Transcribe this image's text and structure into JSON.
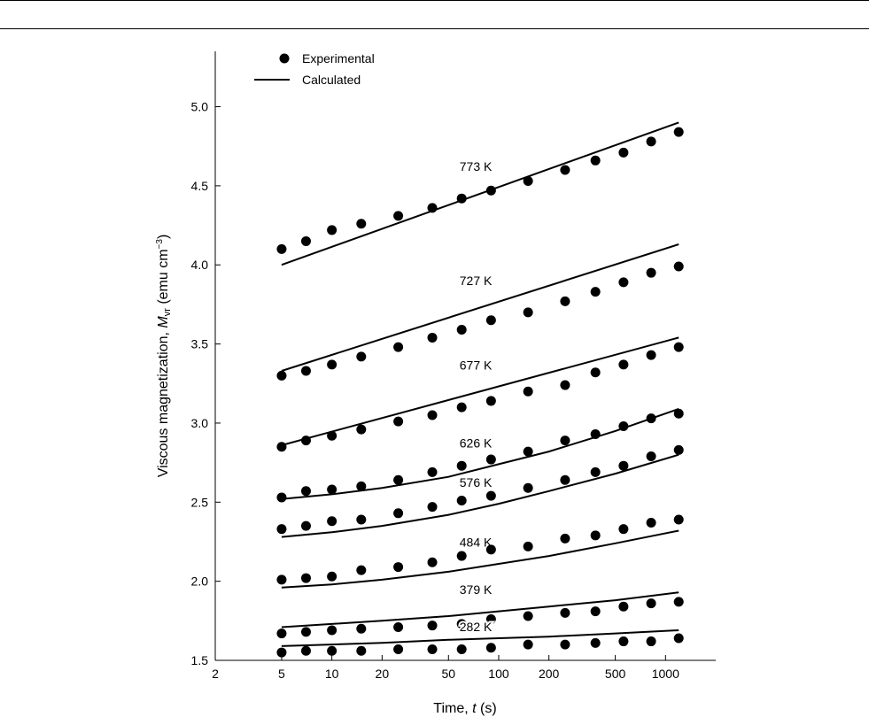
{
  "chart_data": {
    "type": "scatter",
    "xlabel": {
      "main": "Time, ",
      "var": "t",
      "unit": " (s)"
    },
    "ylabel": {
      "main": "Viscous magnetization, ",
      "var": "M",
      "sub": "vr",
      "unit": " (emu cm",
      "sup": "−3",
      "close": ")"
    },
    "xscale": "log",
    "xlim": [
      2,
      2000
    ],
    "ylim": [
      1.5,
      5.35
    ],
    "xticks": [
      2,
      5,
      10,
      20,
      50,
      100,
      200,
      500,
      1000
    ],
    "xtick_labels": [
      "2",
      "5",
      "10",
      "20",
      "50",
      "100",
      "200",
      "500",
      "1000"
    ],
    "yticks": [
      1.5,
      2.0,
      2.5,
      3.0,
      3.5,
      4.0,
      4.5,
      5.0
    ],
    "ytick_labels": [
      "1.5",
      "2.0",
      "2.5",
      "3.0",
      "3.5",
      "4.0",
      "4.5",
      "5.0"
    ],
    "legend": {
      "position": "top-left",
      "entries": [
        "Experimental",
        "Calculated"
      ]
    },
    "x": [
      5,
      7,
      10,
      15,
      25,
      40,
      60,
      90,
      150,
      250,
      380,
      560,
      820,
      1200
    ],
    "series": [
      {
        "name": "773 K",
        "experimental": [
          4.1,
          4.15,
          4.22,
          4.26,
          4.31,
          4.36,
          4.42,
          4.47,
          4.53,
          4.6,
          4.66,
          4.71,
          4.78,
          4.84
        ],
        "calculated_x": [
          5,
          1200
        ],
        "calculated": [
          4.0,
          4.9
        ]
      },
      {
        "name": "727 K",
        "experimental": [
          3.3,
          3.33,
          3.37,
          3.42,
          3.48,
          3.54,
          3.59,
          3.65,
          3.7,
          3.77,
          3.83,
          3.89,
          3.95,
          3.99
        ],
        "calculated_x": [
          5,
          1200
        ],
        "calculated": [
          3.33,
          4.13
        ]
      },
      {
        "name": "677 K",
        "experimental": [
          2.85,
          2.89,
          2.92,
          2.96,
          3.01,
          3.05,
          3.1,
          3.14,
          3.2,
          3.24,
          3.32,
          3.37,
          3.43,
          3.48
        ],
        "calculated_x": [
          5,
          1200
        ],
        "calculated": [
          2.86,
          3.54
        ]
      },
      {
        "name": "626 K",
        "experimental": [
          2.53,
          2.57,
          2.58,
          2.6,
          2.64,
          2.69,
          2.73,
          2.77,
          2.82,
          2.89,
          2.93,
          2.98,
          3.03,
          3.06
        ],
        "calculated_x": [
          5,
          10,
          20,
          50,
          100,
          200,
          500,
          1200
        ],
        "calculated": [
          2.52,
          2.55,
          2.59,
          2.66,
          2.74,
          2.82,
          2.95,
          3.09
        ]
      },
      {
        "name": "576 K",
        "experimental": [
          2.33,
          2.35,
          2.38,
          2.39,
          2.43,
          2.47,
          2.51,
          2.54,
          2.59,
          2.64,
          2.69,
          2.73,
          2.79,
          2.83
        ],
        "calculated_x": [
          5,
          10,
          20,
          50,
          100,
          200,
          500,
          1200
        ],
        "calculated": [
          2.28,
          2.31,
          2.35,
          2.42,
          2.49,
          2.57,
          2.68,
          2.8
        ]
      },
      {
        "name": "484 K",
        "experimental": [
          2.01,
          2.02,
          2.03,
          2.07,
          2.09,
          2.12,
          2.16,
          2.2,
          2.22,
          2.27,
          2.29,
          2.33,
          2.37,
          2.39
        ],
        "calculated_x": [
          5,
          10,
          20,
          50,
          100,
          200,
          500,
          1200
        ],
        "calculated": [
          1.96,
          1.98,
          2.01,
          2.06,
          2.11,
          2.16,
          2.24,
          2.32
        ]
      },
      {
        "name": "379 K",
        "experimental": [
          1.67,
          1.68,
          1.69,
          1.7,
          1.71,
          1.72,
          1.73,
          1.76,
          1.78,
          1.8,
          1.81,
          1.84,
          1.86,
          1.87
        ],
        "calculated_x": [
          5,
          10,
          20,
          50,
          100,
          200,
          500,
          1200
        ],
        "calculated": [
          1.71,
          1.73,
          1.75,
          1.78,
          1.81,
          1.84,
          1.88,
          1.93
        ]
      },
      {
        "name": "282 K",
        "experimental": [
          1.55,
          1.56,
          1.56,
          1.56,
          1.57,
          1.57,
          1.57,
          1.58,
          1.6,
          1.6,
          1.61,
          1.62,
          1.62,
          1.64
        ],
        "calculated_x": [
          5,
          10,
          20,
          50,
          100,
          200,
          500,
          1200
        ],
        "calculated": [
          1.59,
          1.6,
          1.61,
          1.63,
          1.64,
          1.65,
          1.67,
          1.69
        ]
      }
    ]
  }
}
